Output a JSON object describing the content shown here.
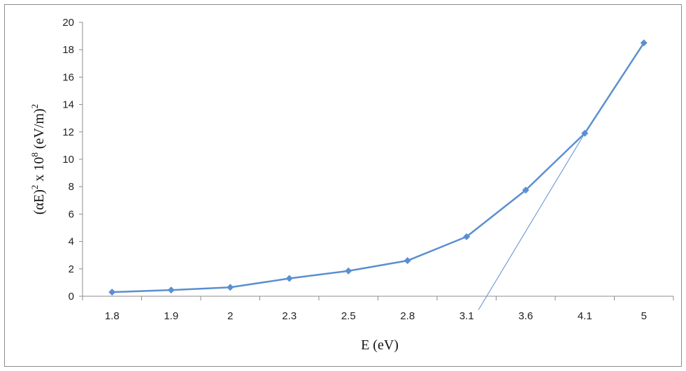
{
  "chart_data": {
    "type": "line",
    "categories": [
      "1.8",
      "1.9",
      "2",
      "2.3",
      "2.5",
      "2.8",
      "3.1",
      "3.6",
      "4.1",
      "5"
    ],
    "series": [
      {
        "values": [
          0.3,
          0.45,
          0.65,
          1.3,
          1.85,
          2.6,
          4.35,
          7.75,
          11.9,
          18.5
        ],
        "color": "#5b8fd0"
      }
    ],
    "tangent_line": {
      "from_category_index": 6.2,
      "to_category_index": 8,
      "from_value": -1,
      "to_value": 11.9,
      "color": "#5b8fd0"
    },
    "ylim": [
      0,
      20
    ],
    "yticks": [
      "0",
      "2",
      "4",
      "6",
      "8",
      "10",
      "12",
      "14",
      "16",
      "18",
      "20"
    ],
    "xlabel": "E (eV)",
    "ylabel": {
      "prefix": "(αE)",
      "sup1": "2",
      "middle": " x 10",
      "sup2": "8",
      "suffix": " (eV/m)",
      "sup3": "2"
    },
    "grid": false,
    "marker": "diamond"
  }
}
